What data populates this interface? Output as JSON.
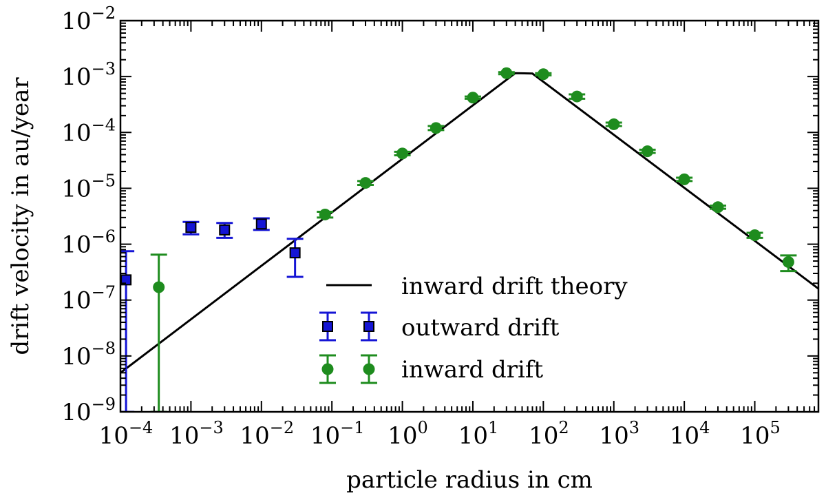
{
  "chart_data": {
    "type": "scatter",
    "xlabel": "particle radius in cm",
    "ylabel": "drift velocity in au/year",
    "xscale": "log",
    "yscale": "log",
    "xlim": [
      0.0001,
      800000
    ],
    "ylim": [
      1e-09,
      0.01
    ],
    "x_ticks": [
      {
        "exp": "-4",
        "value": 0.0001
      },
      {
        "exp": "-3",
        "value": 0.001
      },
      {
        "exp": "-2",
        "value": 0.01
      },
      {
        "exp": "-1",
        "value": 0.1
      },
      {
        "exp": "0",
        "value": 1
      },
      {
        "exp": "1",
        "value": 10
      },
      {
        "exp": "2",
        "value": 100
      },
      {
        "exp": "3",
        "value": 1000
      },
      {
        "exp": "4",
        "value": 10000
      },
      {
        "exp": "5",
        "value": 100000
      }
    ],
    "y_ticks": [
      {
        "exp": "-9",
        "value": 1e-09
      },
      {
        "exp": "-8",
        "value": 1e-08
      },
      {
        "exp": "-7",
        "value": 1e-07
      },
      {
        "exp": "-6",
        "value": 1e-06
      },
      {
        "exp": "-5",
        "value": 1e-05
      },
      {
        "exp": "-4",
        "value": 0.0001
      },
      {
        "exp": "-3",
        "value": 0.001
      },
      {
        "exp": "-2",
        "value": 0.01
      }
    ],
    "series": [
      {
        "name": "inward drift theory",
        "kind": "line",
        "color": "#000000",
        "x": [
          0.0001,
          40,
          70,
          800000
        ],
        "y": [
          5e-09,
          0.00115,
          0.00113,
          1.6e-07
        ]
      },
      {
        "name": "outward drift",
        "kind": "points",
        "marker": "square",
        "color": "#1515d5",
        "x": [
          0.00012,
          0.001,
          0.003,
          0.01,
          0.03
        ],
        "y": [
          2.3e-07,
          2e-06,
          1.8e-06,
          2.3e-06,
          7e-07
        ],
        "ylo": [
          1e-09,
          1.5e-06,
          1.3e-06,
          1.8e-06,
          2.6e-07
        ],
        "yhi": [
          7.5e-07,
          2.5e-06,
          2.4e-06,
          2.9e-06,
          1.25e-06
        ]
      },
      {
        "name": "inward drift",
        "kind": "points",
        "marker": "circle",
        "color": "#1e8c1e",
        "x": [
          0.00035,
          0.08,
          0.3,
          1,
          3,
          10,
          30,
          100,
          300,
          1000,
          3000,
          10000,
          30000,
          100000,
          300000
        ],
        "y": [
          1.7e-07,
          3.4e-06,
          1.25e-05,
          4.2e-05,
          0.00012,
          0.00042,
          0.00115,
          0.0011,
          0.00044,
          0.00014,
          4.6e-05,
          1.45e-05,
          4.6e-06,
          1.45e-06,
          4.8e-07
        ],
        "ylo": [
          1e-09,
          3e-06,
          1.15e-05,
          3.9e-05,
          0.00011,
          0.0004,
          0.0011,
          0.00105,
          0.0004,
          0.00013,
          4.3e-05,
          1.35e-05,
          4.3e-06,
          1.3e-06,
          3.3e-07
        ],
        "yhi": [
          6.5e-07,
          3.8e-06,
          1.35e-05,
          4.5e-05,
          0.00013,
          0.00044,
          0.0012,
          0.00115,
          0.00048,
          0.00015,
          4.9e-05,
          1.55e-05,
          4.9e-06,
          1.6e-06,
          6.3e-07
        ]
      }
    ],
    "legend_position": "bottom-right"
  }
}
